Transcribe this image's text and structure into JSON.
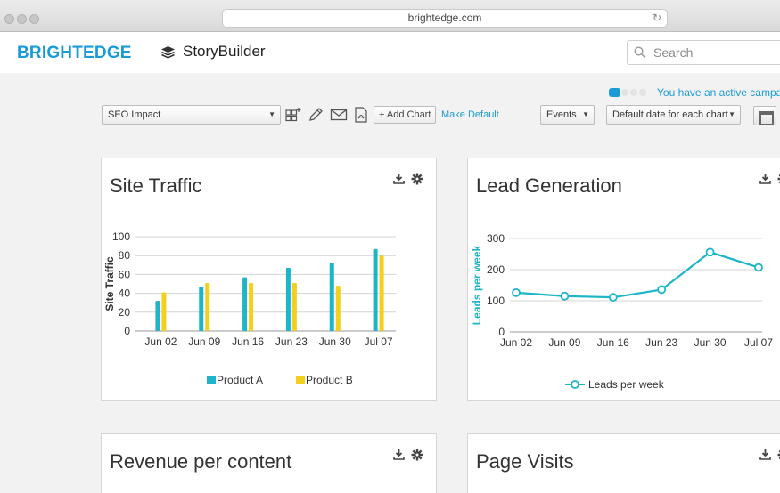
{
  "browser": {
    "url": "brightedge.com"
  },
  "header": {
    "logo": "BRIGHTEDGE",
    "product": "StoryBuilder",
    "search_placeholder": "Search"
  },
  "notice": {
    "text": "You have an active campaign"
  },
  "toolbar": {
    "dashboard_select": "SEO Impact",
    "add_chart_label": "+ Add Chart",
    "make_default_label": "Make Default",
    "events_select": "Events",
    "date_select": "Default date for each chart"
  },
  "panels": {
    "site_traffic": {
      "title": "Site Traffic"
    },
    "lead_generation": {
      "title": "Lead Generation"
    },
    "revenue": {
      "title": "Revenue per content"
    },
    "page_visits": {
      "title": "Page Visits"
    }
  },
  "colors": {
    "accent": "#1a9bd7",
    "product_a": "#1db6c9",
    "product_b": "#f5cf1d",
    "lead_line": "#1db6c9"
  },
  "chart_data": [
    {
      "type": "bar",
      "title": "Site Traffic",
      "ylabel": "Site Traffic",
      "xlabel": "",
      "categories": [
        "Jun 02",
        "Jun 09",
        "Jun 16",
        "Jun 23",
        "Jun 30",
        "Jul 07"
      ],
      "series": [
        {
          "name": "Product A",
          "values": [
            32,
            47,
            57,
            67,
            72,
            87
          ]
        },
        {
          "name": "Product B",
          "values": [
            41,
            51,
            51,
            51,
            48,
            80
          ]
        }
      ],
      "ylim": [
        0,
        100
      ],
      "yticks": [
        0,
        20,
        40,
        60,
        80,
        100
      ],
      "grid": true,
      "legend": "bottom"
    },
    {
      "type": "line",
      "title": "Lead Generation",
      "ylabel": "Leads per week",
      "xlabel": "",
      "categories": [
        "Jun 02",
        "Jun 09",
        "Jun 16",
        "Jun 23",
        "Jun 30",
        "Jul 07"
      ],
      "series": [
        {
          "name": "Leads per week",
          "values": [
            126,
            115,
            111,
            136,
            256,
            207
          ]
        }
      ],
      "ylim": [
        0,
        300
      ],
      "yticks": [
        0,
        100,
        200,
        300
      ],
      "grid": true,
      "legend": "bottom"
    }
  ]
}
